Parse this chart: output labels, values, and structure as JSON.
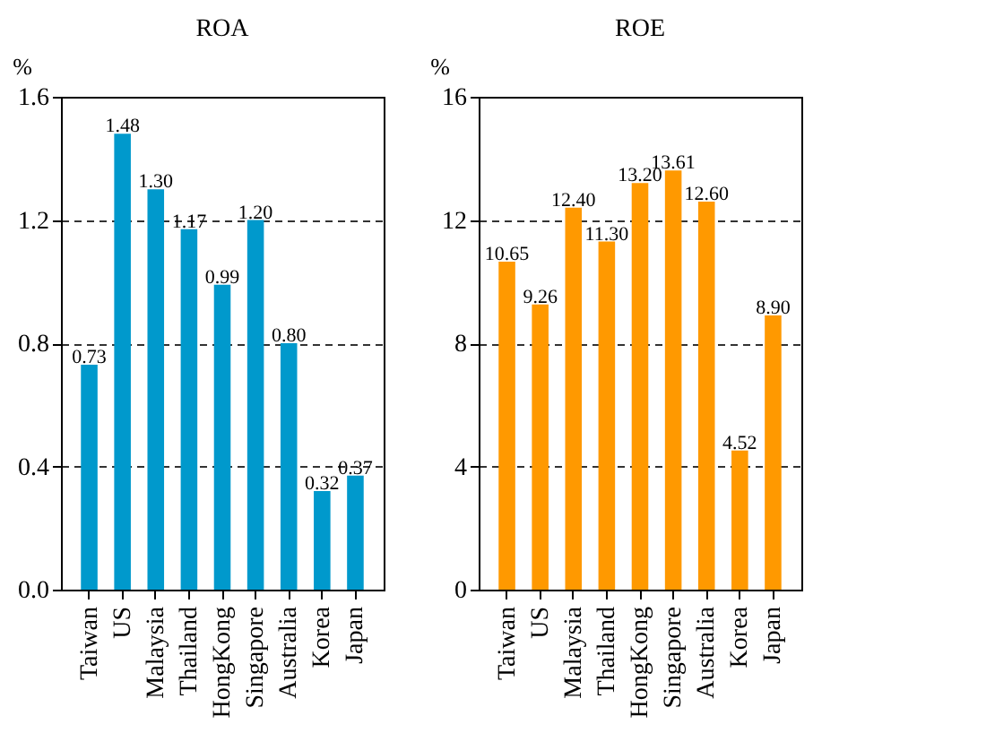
{
  "chart_data": [
    {
      "type": "bar",
      "title": "ROA",
      "ylabel": "%",
      "categories": [
        "Taiwan",
        "US",
        "Malaysia",
        "Thailand",
        "HongKong",
        "Singapore",
        "Australia",
        "Korea",
        "Japan"
      ],
      "color": "#0099cc",
      "values": [
        0.73,
        1.48,
        1.3,
        1.17,
        0.99,
        1.2,
        0.8,
        0.32,
        0.37
      ],
      "value_labels": [
        "0.73",
        "1.48",
        "1.30",
        "1.17",
        "0.99",
        "1.20",
        "0.80",
        "0.32",
        "0.37"
      ],
      "ylim": [
        0,
        1.6
      ],
      "yticks": [
        {
          "value": 0,
          "label": "0.0"
        },
        0.4,
        0.8,
        1.2,
        1.6
      ],
      "grid": "y"
    },
    {
      "type": "bar",
      "title": "ROE",
      "ylabel": "%",
      "categories": [
        "Taiwan",
        "US",
        "Malaysia",
        "Thailand",
        "HongKong",
        "Singapore",
        "Australia",
        "Korea",
        "Japan"
      ],
      "color": "#ff9900",
      "values": [
        10.65,
        9.26,
        12.4,
        11.3,
        13.2,
        13.61,
        12.6,
        4.52,
        8.9
      ],
      "value_labels": [
        "10.65",
        "9.26",
        "12.40",
        "11.30",
        "13.20",
        "13.61",
        "12.60",
        "4.52",
        "8.90"
      ],
      "ylim": [
        0,
        16
      ],
      "yticks": [
        0,
        4,
        8,
        12,
        16
      ],
      "grid": "y"
    }
  ]
}
